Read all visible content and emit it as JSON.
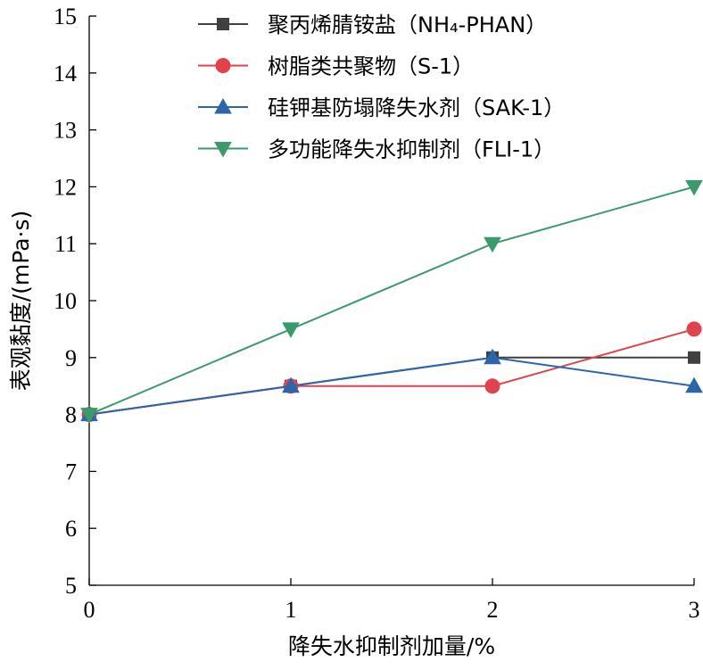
{
  "chart_data": {
    "type": "line",
    "title": "",
    "xlabel": "降失水抑制剂加量/%",
    "ylabel": "表观黏度/(mPa·s)",
    "x": [
      0,
      1,
      2,
      3
    ],
    "x_ticks": [
      "0",
      "1",
      "2",
      "3"
    ],
    "xlim": [
      0,
      3
    ],
    "ylim": [
      5,
      15
    ],
    "y_ticks": [
      "5",
      "6",
      "7",
      "8",
      "9",
      "10",
      "11",
      "12",
      "13",
      "14",
      "15"
    ],
    "grid": false,
    "legend_position": "top-right",
    "series": [
      {
        "name": "聚丙烯腈铵盐（NH₄-PHAN）",
        "values": [
          8,
          8.5,
          9,
          9
        ],
        "color": "#404040",
        "marker": "square"
      },
      {
        "name": "树脂类共聚物（S-1）",
        "values": [
          8,
          8.5,
          8.5,
          9.5
        ],
        "color": "#e0434b",
        "marker": "circle"
      },
      {
        "name": "硅钾基防塌降失水剂（SAK-1）",
        "values": [
          8,
          8.5,
          9,
          8.5
        ],
        "color": "#2b67a8",
        "marker": "triangle-up"
      },
      {
        "name": "多功能降失水抑制剂（FLI-1）",
        "values": [
          8,
          9.5,
          11,
          12
        ],
        "color": "#3a9a6c",
        "marker": "triangle-down"
      }
    ]
  }
}
